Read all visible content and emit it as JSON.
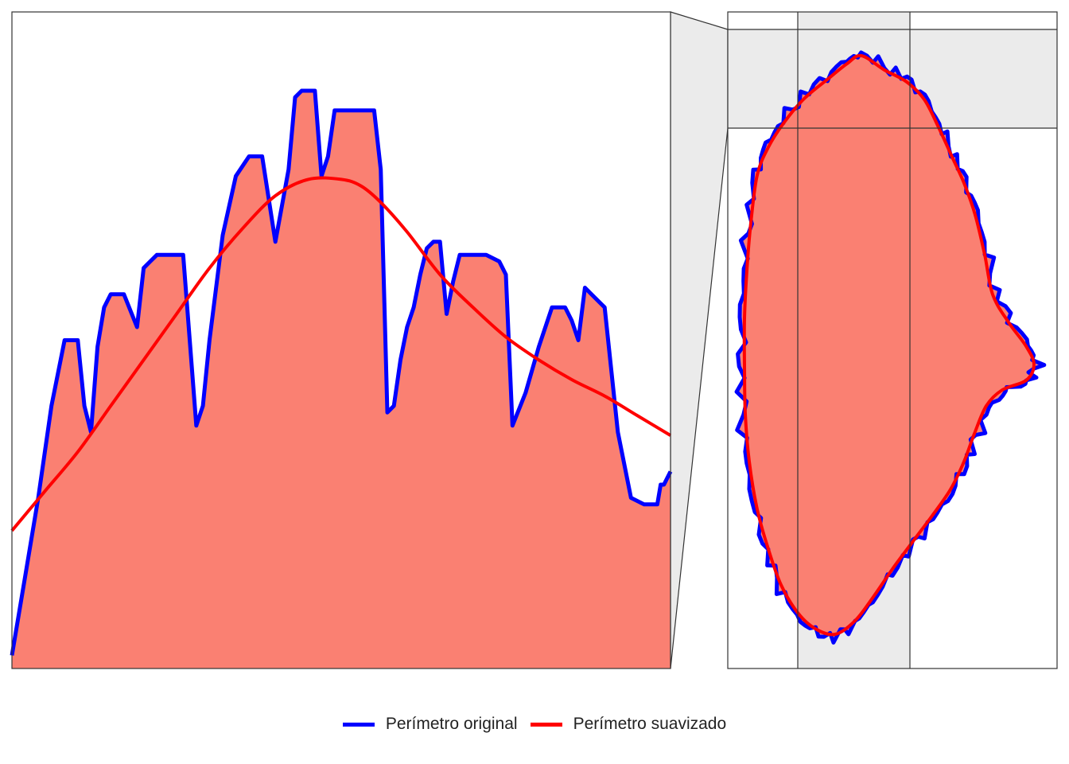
{
  "chart_data": [
    {
      "panel": "zoomed detail of perimeter",
      "type": "area",
      "xlim": [
        0,
        100
      ],
      "ylim": [
        0,
        100
      ],
      "axes_visible": false,
      "grid": false,
      "series": [
        {
          "name": "Perímetro original",
          "style": "filled area with outline",
          "x": [
            0,
            2,
            4,
            6,
            8,
            10,
            11,
            12,
            13,
            14,
            15,
            17,
            19,
            20,
            21,
            22,
            24,
            26,
            28,
            29,
            30,
            31,
            32,
            34,
            36,
            38,
            40,
            42,
            43,
            44,
            46,
            47,
            48,
            49,
            50,
            52,
            53,
            55,
            56,
            57,
            58,
            59,
            60,
            61,
            62,
            63,
            64,
            65,
            66,
            67,
            68,
            70,
            72,
            74,
            75,
            76,
            78,
            80,
            82,
            84,
            85,
            86,
            87,
            88,
            90,
            92,
            94,
            96,
            97,
            98,
            98.5,
            99,
            100
          ],
          "y": [
            2,
            14,
            26,
            40,
            50,
            50,
            40,
            36,
            49,
            55,
            57,
            57,
            52,
            61,
            62,
            63,
            63,
            63,
            37,
            40,
            50,
            58,
            66,
            75,
            78,
            78,
            65,
            76,
            87,
            88,
            88,
            75,
            78,
            85,
            85,
            85,
            85,
            85,
            76,
            39,
            40,
            47,
            52,
            55,
            60,
            64,
            65,
            65,
            54,
            59,
            63,
            63,
            63,
            62,
            60,
            37,
            42,
            49,
            55,
            55,
            53,
            50,
            58,
            57,
            55,
            36,
            26,
            25,
            25,
            25,
            28,
            28,
            30
          ]
        },
        {
          "name": "Perímetro suavizado",
          "style": "smooth line",
          "x": [
            0,
            5,
            10,
            15,
            20,
            25,
            30,
            35,
            40,
            45,
            50,
            53,
            56,
            60,
            65,
            70,
            75,
            80,
            85,
            90,
            95,
            100
          ],
          "y": [
            21,
            27,
            33,
            40,
            47,
            54,
            61,
            67,
            72,
            74.5,
            74.5,
            73.5,
            71,
            66.5,
            60,
            55,
            50.5,
            47,
            44,
            41.5,
            38.5,
            35.5
          ]
        }
      ]
    },
    {
      "panel": "full closed perimeter shape",
      "type": "area",
      "axes_visible": false,
      "grid": false,
      "note": "inset with shaded crosshair band indicating zoom region",
      "series": [
        {
          "name": "Perímetro original",
          "style": "closed filled shape with jagged outline"
        },
        {
          "name": "Perímetro suavizado",
          "style": "closed smooth curve"
        }
      ]
    }
  ],
  "legend": {
    "position": "bottom",
    "items": [
      {
        "label": "Perímetro original",
        "color": "#0000ff"
      },
      {
        "label": "Perímetro suavizado",
        "color": "#ff0000"
      }
    ]
  },
  "colors": {
    "fill": "#fa8072",
    "original": "#0000ff",
    "smoothed": "#ff0000",
    "highlight_band": "#ebebeb",
    "frame": "#333333"
  }
}
